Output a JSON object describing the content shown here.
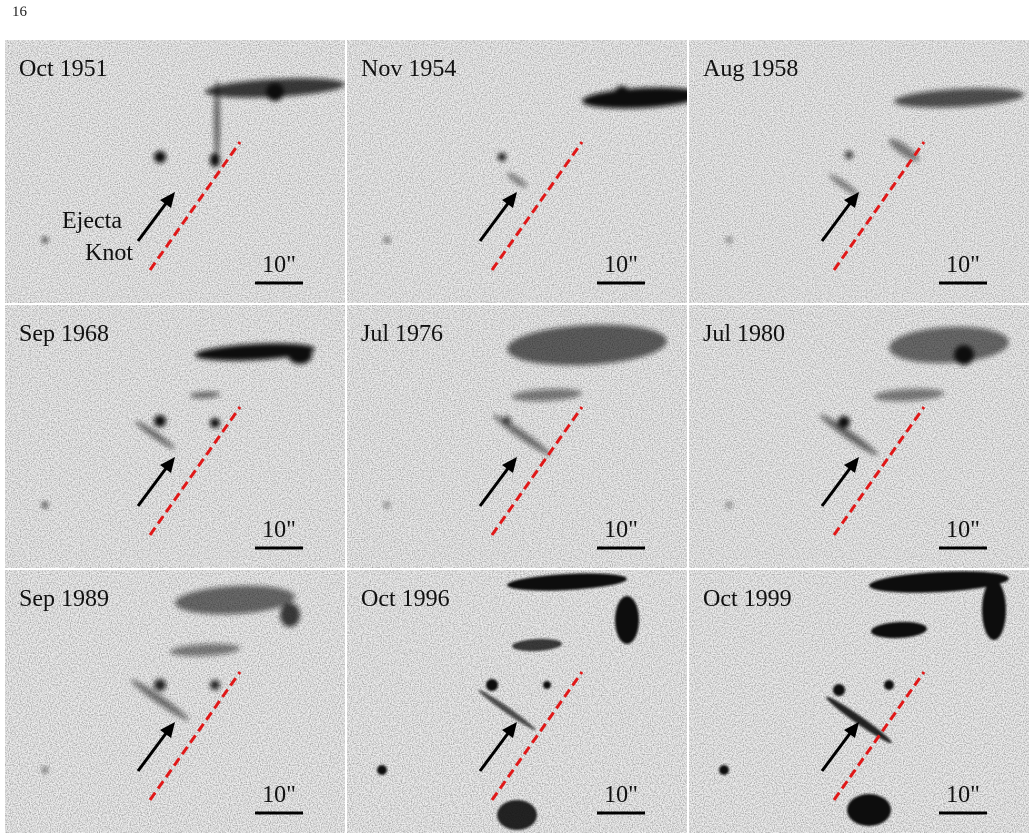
{
  "page_number": "16",
  "annotation": [
    "Ejecta",
    "Knot"
  ],
  "panels": [
    {
      "date": "Oct 1951",
      "scale": "10\""
    },
    {
      "date": "Nov 1954",
      "scale": "10\""
    },
    {
      "date": "Aug 1958",
      "scale": "10\""
    },
    {
      "date": "Sep 1968",
      "scale": "10\""
    },
    {
      "date": "Jul 1976",
      "scale": "10\""
    },
    {
      "date": "Jul 1980",
      "scale": "10\""
    },
    {
      "date": "Sep 1989",
      "scale": "10\""
    },
    {
      "date": "Oct 1996",
      "scale": "10\""
    },
    {
      "date": "Oct 1999",
      "scale": "10\""
    }
  ]
}
